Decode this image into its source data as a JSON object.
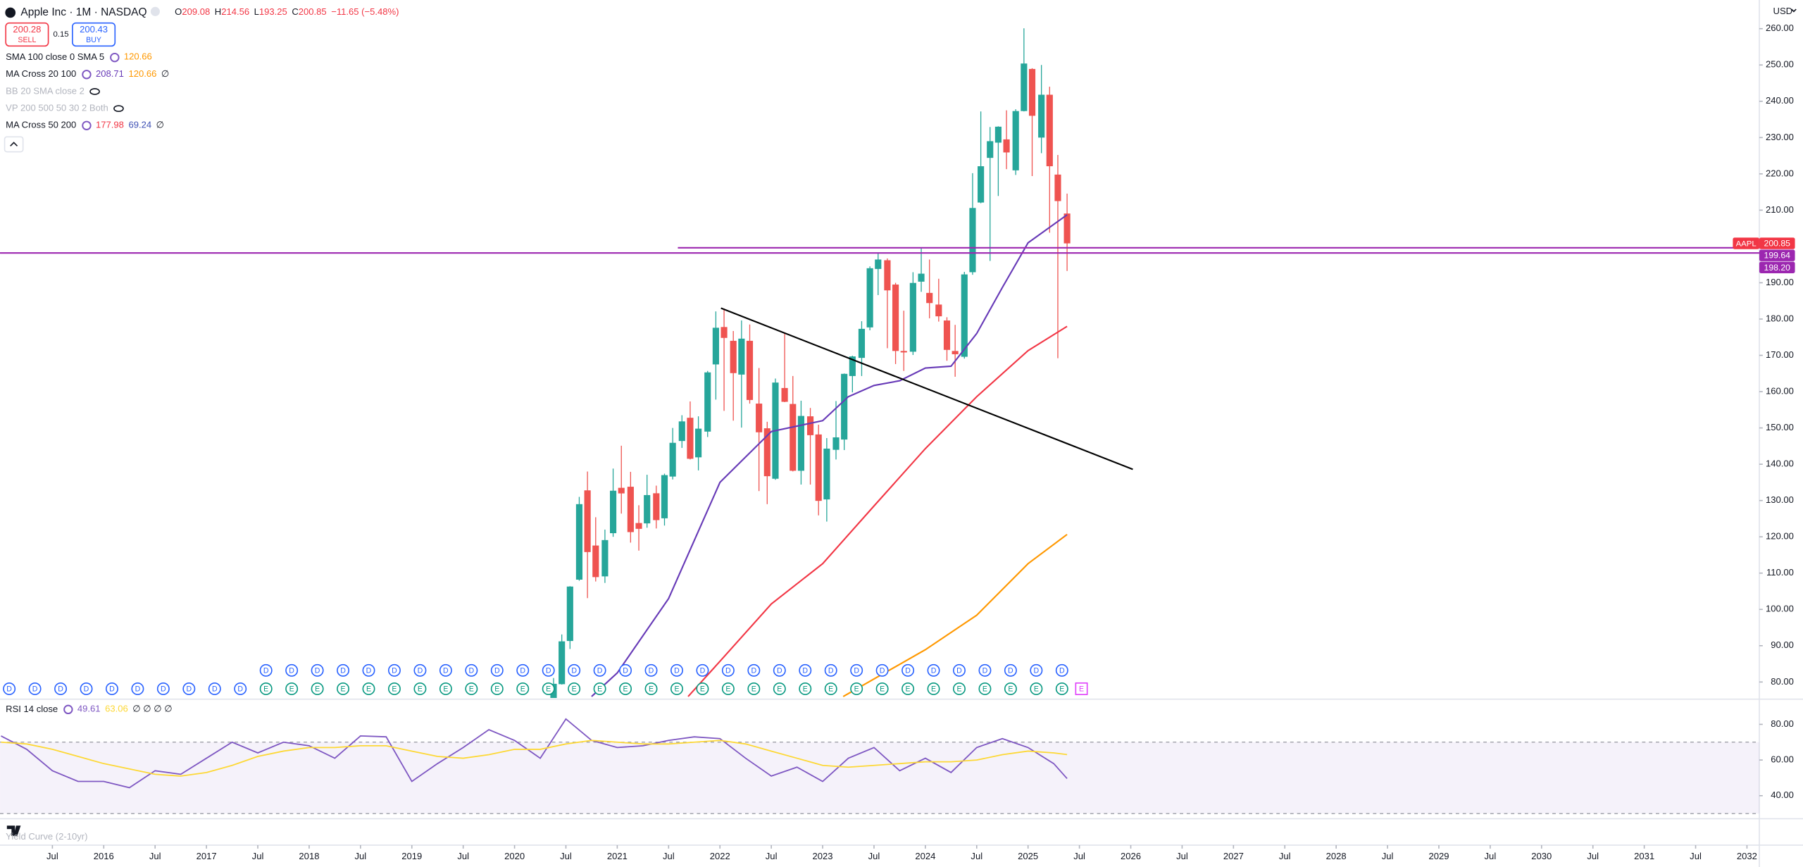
{
  "header": {
    "symbol": "Apple Inc · 1M · NASDAQ",
    "ohlc_labels": [
      "O",
      "H",
      "L",
      "C"
    ],
    "change": "−11.65 (−5.48%)",
    "sell_price": 200.28,
    "sell": "SELL",
    "spread": 0.15,
    "buy_price": 200.43,
    "buy": "BUY"
  },
  "indicators": [
    {
      "name": "SMA 100 close 0 SMA 5",
      "values": [
        120.66
      ],
      "colors": [
        "#ff9800"
      ]
    },
    {
      "name": "MA Cross 20 100",
      "values": [
        208.71,
        120.66
      ],
      "colors": [
        "#673ab7",
        "#ff9800"
      ],
      "suffix": "∅"
    },
    {
      "name": "BB 20 SMA close 2",
      "hidden": true
    },
    {
      "name": "VP 200 500 50 30 2 Both",
      "hidden": true
    },
    {
      "name": "MA Cross 50 200",
      "values": [
        177.98,
        69.24
      ],
      "colors": [
        "#f23645",
        "#3f51b5"
      ],
      "suffix": "∅"
    }
  ],
  "chart_data": [
    {
      "type": "candlestick",
      "currency": "USD",
      "up_color": "#26a69a",
      "down_color": "#ef5350",
      "xlim": [
        2014.99,
        2032.12
      ],
      "ylim": [
        75.6,
        267.9
      ],
      "xticks": [
        {
          "value": 2015.5,
          "label": "Jul"
        },
        2016,
        {
          "value": 2016.5,
          "label": "Jul"
        },
        2017,
        {
          "value": 2017.5,
          "label": "Jul"
        },
        2018,
        {
          "value": 2018.5,
          "label": "Jul"
        },
        2019,
        {
          "value": 2019.5,
          "label": "Jul"
        },
        2020,
        {
          "value": 2020.5,
          "label": "Jul"
        },
        2021,
        {
          "value": 2021.5,
          "label": "Jul"
        },
        2022,
        {
          "value": 2022.5,
          "label": "Jul"
        },
        2023,
        {
          "value": 2023.5,
          "label": "Jul"
        },
        2024,
        {
          "value": 2024.5,
          "label": "Jul"
        },
        2025,
        {
          "value": 2025.5,
          "label": "Jul"
        },
        2026,
        {
          "value": 2026.5,
          "label": "Jul"
        },
        2027,
        {
          "value": 2027.5,
          "label": "Jul"
        },
        2028,
        {
          "value": 2028.5,
          "label": "Jul"
        },
        2029,
        {
          "value": 2029.5,
          "label": "Jul"
        },
        2030,
        {
          "value": 2030.5,
          "label": "Jul"
        },
        2031,
        {
          "value": 2031.5,
          "label": "Jul"
        },
        2032
      ],
      "yticks": [
        {
          "value": 80,
          "label": "80.00"
        },
        {
          "value": 90,
          "label": "90.00"
        },
        {
          "value": 100,
          "label": "100.00"
        },
        {
          "value": 110,
          "label": "110.00"
        },
        {
          "value": 120,
          "label": "120.00"
        },
        {
          "value": 130,
          "label": "130.00"
        },
        {
          "value": 140,
          "label": "140.00"
        },
        {
          "value": 150,
          "label": "150.00"
        },
        {
          "value": 160,
          "label": "160.00"
        },
        {
          "value": 170,
          "label": "170.00"
        },
        {
          "value": 180,
          "label": "180.00"
        },
        {
          "value": 190,
          "label": "190.00"
        },
        {
          "value": 200,
          "label": "200.00"
        },
        {
          "value": 210,
          "label": "210.00"
        },
        {
          "value": 220,
          "label": "220.00"
        },
        {
          "value": 230,
          "label": "230.00"
        },
        {
          "value": 240,
          "label": "240.00"
        },
        {
          "value": 250,
          "label": "250.00"
        },
        {
          "value": 260,
          "label": "260.00"
        }
      ],
      "x": [
        2020.29,
        2020.38,
        2020.46,
        2020.54,
        2020.63,
        2020.71,
        2020.79,
        2020.88,
        2020.96,
        2021.04,
        2021.13,
        2021.21,
        2021.29,
        2021.38,
        2021.46,
        2021.54,
        2021.63,
        2021.71,
        2021.79,
        2021.88,
        2021.96,
        2022.04,
        2022.13,
        2022.21,
        2022.29,
        2022.38,
        2022.46,
        2022.54,
        2022.63,
        2022.71,
        2022.79,
        2022.88,
        2022.96,
        2023.04,
        2023.13,
        2023.21,
        2023.29,
        2023.38,
        2023.46,
        2023.54,
        2023.63,
        2023.71,
        2023.79,
        2023.88,
        2023.96,
        2024.04,
        2024.13,
        2024.21,
        2024.29,
        2024.38,
        2024.46,
        2024.54,
        2024.63,
        2024.71,
        2024.79,
        2024.88,
        2024.96,
        2025.04,
        2025.13,
        2025.21,
        2025.29,
        2025.38
      ],
      "open": [
        61.6,
        71.6,
        79.4,
        91.3,
        108.2,
        132.8,
        117.6,
        109.1,
        121.0,
        133.5,
        133.8,
        123.8,
        123.7,
        132.0,
        125.1,
        136.6,
        146.4,
        152.8,
        141.9,
        148.99,
        167.5,
        177.8,
        174.0,
        164.7,
        174.0,
        156.7,
        149.9,
        136.0,
        161.0,
        156.6,
        138.2,
        153.2,
        148.2,
        130.3,
        143.97,
        146.8,
        164.3,
        169.3,
        177.7,
        193.8,
        196.2,
        189.5,
        171.2,
        171.0,
        190.3,
        187.2,
        183.99,
        179.6,
        171.2,
        169.6,
        192.9,
        212.1,
        224.4,
        228.6,
        229.5,
        220.97,
        237.3,
        248.9,
        229.99,
        241.8,
        219.8,
        209.08
      ],
      "high": [
        73.6,
        81.1,
        93.1,
        106.4,
        131.0,
        137.98,
        125.4,
        121.99,
        138.8,
        145.1,
        137.9,
        128.7,
        137.1,
        134.1,
        137.4,
        150.0,
        153.5,
        157.3,
        153.2,
        165.7,
        182.1,
        182.9,
        176.7,
        179.6,
        178.5,
        166.5,
        151.7,
        163.6,
        176.2,
        164.3,
        157.5,
        155.5,
        150.9,
        147.2,
        157.4,
        165.0,
        169.9,
        179.4,
        194.5,
        198.2,
        196.7,
        189.98,
        182.3,
        192.9,
        199.6,
        196.4,
        191.1,
        180.5,
        178.4,
        193.0,
        220.2,
        237.2,
        232.9,
        233.1,
        237.5,
        237.8,
        260.1,
        249.1,
        250.0,
        244.0,
        225.2,
        214.56
      ],
      "low": [
        59.2,
        71.5,
        79.3,
        89.1,
        107.9,
        103.1,
        107.7,
        107.3,
        120.0,
        126.4,
        118.4,
        116.2,
        122.5,
        122.3,
        123.1,
        135.8,
        144.5,
        141.3,
        138.3,
        147.5,
        157.8,
        154.7,
        152.0,
        150.1,
        156.7,
        132.6,
        129.0,
        135.7,
        157.1,
        138.0,
        134.4,
        134.4,
        125.9,
        124.2,
        141.3,
        143.9,
        159.8,
        164.3,
        176.9,
        186.6,
        171.96,
        167.6,
        165.7,
        170.1,
        187.5,
        180.2,
        179.3,
        168.5,
        164.1,
        169.1,
        192.2,
        211.9,
        196.0,
        213.9,
        221.3,
        219.7,
        237.2,
        219.4,
        225.7,
        203.8,
        169.2,
        193.25
      ],
      "close": [
        73.4,
        79.5,
        91.2,
        106.3,
        129.0,
        115.8,
        108.9,
        119.1,
        132.7,
        131.96,
        121.3,
        122.2,
        131.5,
        124.6,
        137.0,
        145.9,
        151.8,
        141.5,
        149.8,
        165.3,
        177.6,
        174.8,
        165.1,
        174.6,
        157.7,
        148.8,
        136.7,
        162.5,
        157.2,
        138.2,
        153.3,
        148.0,
        129.9,
        144.3,
        147.4,
        164.9,
        169.7,
        177.3,
        194.0,
        196.4,
        187.9,
        171.2,
        170.8,
        189.95,
        192.5,
        184.4,
        180.75,
        171.5,
        170.3,
        192.3,
        210.6,
        222.1,
        229.0,
        233.0,
        225.9,
        237.3,
        250.4,
        236.0,
        241.8,
        222.1,
        212.5,
        200.85
      ],
      "series": [
        {
          "color": "#673ab7",
          "x": [
            2020.75,
            2021.0,
            2021.5,
            2022.0,
            2022.5,
            2023.0,
            2023.25,
            2023.5,
            2023.75,
            2024.0,
            2024.25,
            2024.5,
            2024.75,
            2025.0,
            2025.38
          ],
          "values": [
            76,
            82.5,
            103,
            135,
            149,
            152,
            158.6,
            161.7,
            163,
            166.5,
            167,
            176,
            188.7,
            201,
            208.71
          ]
        },
        {
          "color": "#f23645",
          "x": [
            2021.69,
            2022.0,
            2022.5,
            2023.0,
            2023.5,
            2024.0,
            2024.5,
            2025.0,
            2025.38
          ],
          "values": [
            76,
            85.7,
            101.5,
            112.6,
            128.5,
            144.3,
            158.6,
            171.3,
            177.98
          ]
        },
        {
          "color": "#ff9800",
          "x": [
            2023.2,
            2024.0,
            2024.5,
            2025.0,
            2025.38
          ],
          "values": [
            76,
            88.9,
            98.4,
            112.6,
            120.66
          ]
        }
      ],
      "trend_line": {
        "color": "#000000",
        "x": [
          2022.01,
          2026.02
        ],
        "values": [
          183.0,
          138.6
        ]
      },
      "price_tags": [
        {
          "text": "AAPL",
          "value": 200.85,
          "color": "#f23645"
        },
        {
          "value": 199.64,
          "color": "#9c27b0",
          "start": 2021.59
        },
        {
          "value": 198.2,
          "label": "198.20",
          "color": "#9c27b0",
          "start": 2014.99
        }
      ],
      "events": {
        "dividends": {
          "label": "D",
          "color": "#2962ff",
          "x": [
            2015.08,
            2015.33,
            2015.58,
            2015.83,
            2016.08,
            2016.33,
            2016.58,
            2016.83,
            2017.08,
            2017.33,
            2017.58,
            2017.83,
            2018.08,
            2018.33,
            2018.58,
            2018.83,
            2019.08,
            2019.33,
            2019.58,
            2019.83,
            2020.08,
            2020.33,
            2020.58,
            2020.83,
            2021.08,
            2021.33,
            2021.58,
            2021.83,
            2022.08,
            2022.33,
            2022.58,
            2022.83,
            2023.08,
            2023.33,
            2023.58,
            2023.83,
            2024.08,
            2024.33,
            2024.58,
            2024.83,
            2025.08,
            2025.33
          ]
        },
        "earnings": {
          "label": "E",
          "color": "#089981",
          "upcoming_color": "#e040fb",
          "upcoming": 2025.52,
          "x": [
            2017.58,
            2017.83,
            2018.08,
            2018.33,
            2018.58,
            2018.83,
            2019.08,
            2019.33,
            2019.58,
            2019.83,
            2020.08,
            2020.33,
            2020.58,
            2020.83,
            2021.08,
            2021.33,
            2021.58,
            2021.83,
            2022.08,
            2022.33,
            2022.58,
            2022.83,
            2023.08,
            2023.33,
            2023.58,
            2023.83,
            2024.08,
            2024.33,
            2024.58,
            2024.83,
            2025.08,
            2025.33
          ]
        }
      }
    },
    {
      "type": "line",
      "title": "RSI 14 close",
      "blanks": "∅ ∅ ∅ ∅",
      "xlim": [
        2014.99,
        2032.12
      ],
      "ylim": [
        27.1,
        93.5
      ],
      "yticks": [
        {
          "value": 40,
          "label": "40.00"
        },
        {
          "value": 60,
          "label": "60.00"
        },
        {
          "value": 80,
          "label": "80.00"
        }
      ],
      "band": [
        30,
        70
      ],
      "band_color": "#7e57c2",
      "x": [
        2015.0,
        2015.25,
        2015.5,
        2015.75,
        2016.0,
        2016.25,
        2016.5,
        2016.75,
        2017.0,
        2017.25,
        2017.5,
        2017.75,
        2018.0,
        2018.25,
        2018.5,
        2018.75,
        2019.0,
        2019.25,
        2019.5,
        2019.75,
        2020.0,
        2020.25,
        2020.5,
        2020.75,
        2021.0,
        2021.25,
        2021.5,
        2021.75,
        2022.0,
        2022.25,
        2022.5,
        2022.75,
        2023.0,
        2023.25,
        2023.5,
        2023.75,
        2024.0,
        2024.25,
        2024.5,
        2024.75,
        2025.0,
        2025.25,
        2025.38
      ],
      "series": [
        {
          "color": "#7e57c2",
          "values": [
            73.5,
            66,
            54,
            48,
            48,
            44.5,
            54,
            52,
            61,
            70,
            64,
            70,
            68,
            61,
            73.5,
            73,
            48,
            58,
            67,
            77,
            71,
            61,
            83,
            71,
            67,
            68,
            71,
            73,
            72,
            61,
            51,
            56,
            48,
            61,
            67,
            54,
            61,
            53,
            67,
            72,
            67,
            58,
            49.61
          ]
        },
        {
          "color": "#fdd835",
          "values": [
            70,
            69,
            66,
            62,
            58,
            55,
            52,
            51,
            53,
            57,
            62,
            65,
            67,
            67,
            68,
            68,
            65,
            62,
            61,
            63,
            66,
            66,
            69,
            71,
            70,
            69,
            69,
            70,
            71,
            69,
            65,
            61,
            57,
            56,
            57,
            58,
            59,
            59,
            60,
            63,
            65,
            64,
            63.06
          ]
        }
      ]
    }
  ],
  "footer": {
    "pane_label": "Yield Curve (2-10yr)"
  }
}
